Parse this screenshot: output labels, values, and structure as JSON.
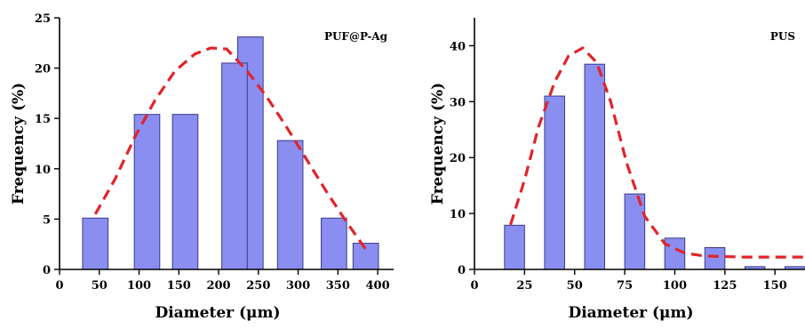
{
  "chart_data": [
    {
      "type": "bar",
      "label": "PUF@P-Ag",
      "xlabel": "Diameter (μm)",
      "ylabel": "Frequency (%)",
      "xlim": [
        0,
        420
      ],
      "ylim": [
        0,
        25
      ],
      "xticks": [
        0,
        50,
        100,
        150,
        200,
        250,
        300,
        350,
        400
      ],
      "yticks": [
        0,
        5,
        10,
        15,
        20,
        25
      ],
      "bin_width": 32,
      "x": [
        45,
        110,
        158,
        240,
        220,
        290,
        345,
        385
      ],
      "values": [
        5.1,
        15.4,
        15.4,
        23.1,
        20.5,
        12.8,
        5.1,
        2.6
      ],
      "fit": {
        "style": "dashed",
        "x": [
          45,
          70,
          95,
          120,
          145,
          170,
          190,
          210,
          235,
          260,
          285,
          310,
          335,
          360,
          385
        ],
        "y": [
          5.5,
          9.0,
          13.2,
          16.8,
          19.7,
          21.4,
          22.0,
          21.9,
          19.8,
          17.2,
          14.2,
          11.0,
          7.8,
          4.8,
          2.0
        ]
      },
      "bar_color": "#8a8ef0",
      "fit_color": "#e0242a"
    },
    {
      "type": "bar",
      "label": "PUS",
      "xlabel": "Diameter (μm)",
      "ylabel": "Frequency (%)",
      "xlim": [
        0,
        165
      ],
      "ylim": [
        0,
        45
      ],
      "xticks": [
        0,
        25,
        50,
        75,
        100,
        125,
        150
      ],
      "yticks": [
        0,
        10,
        20,
        30,
        40
      ],
      "bin_width": 10,
      "x": [
        20,
        40,
        60,
        80,
        100,
        120,
        140,
        160
      ],
      "values": [
        7.9,
        31.0,
        36.7,
        13.5,
        5.6,
        3.9,
        0.5,
        0.5
      ],
      "fit": {
        "style": "dashed",
        "x": [
          18,
          25,
          32,
          40,
          47,
          54,
          61,
          68,
          76,
          85,
          95,
          105,
          115,
          125,
          135,
          145,
          155,
          165
        ],
        "y": [
          8.0,
          16.0,
          25.5,
          33.5,
          38.2,
          39.6,
          37.0,
          30.0,
          19.0,
          9.5,
          4.6,
          2.9,
          2.4,
          2.3,
          2.2,
          2.2,
          2.2,
          2.2
        ]
      },
      "bar_color": "#8a8ef0",
      "fit_color": "#e0242a"
    }
  ]
}
